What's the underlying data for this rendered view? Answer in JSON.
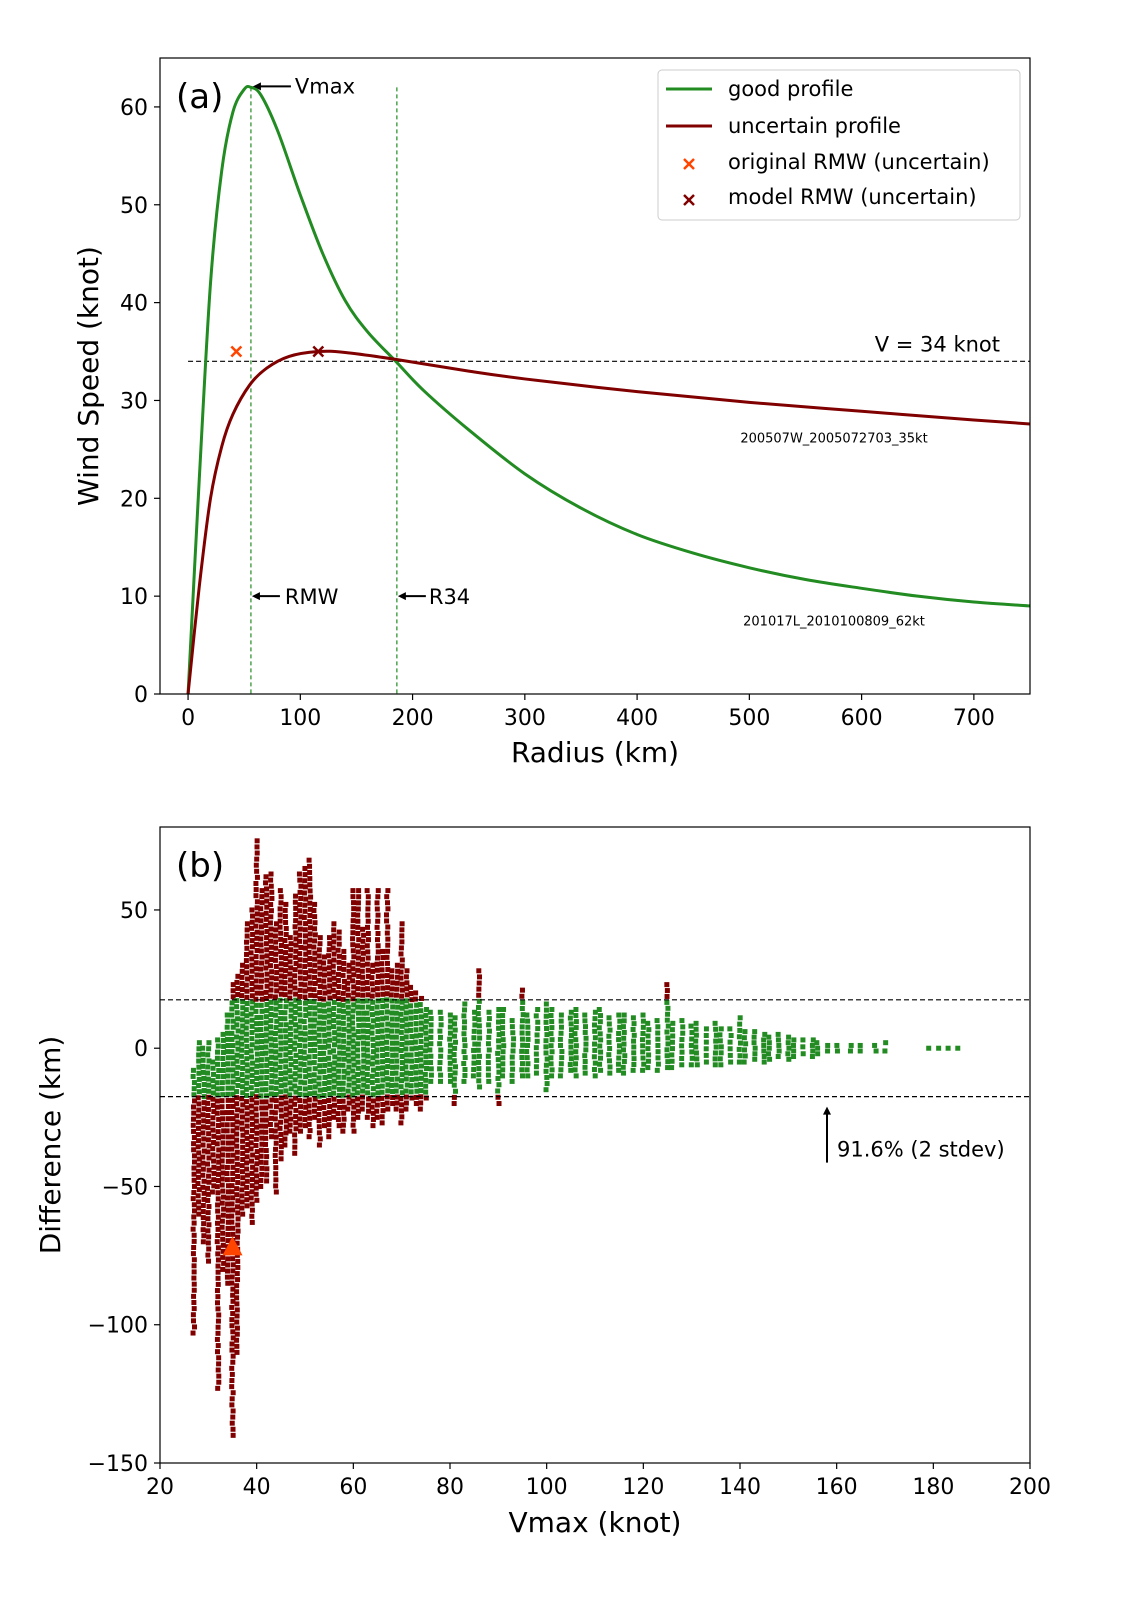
{
  "chart_data": [
    {
      "type": "line",
      "panel_label": "(a)",
      "xlabel": "Radius (km)",
      "ylabel": "Wind Speed (knot)",
      "xlim": [
        -25,
        750
      ],
      "ylim": [
        0,
        65
      ],
      "xticks": [
        0,
        100,
        200,
        300,
        400,
        500,
        600,
        700
      ],
      "yticks": [
        0,
        10,
        20,
        30,
        40,
        50,
        60
      ],
      "series": [
        {
          "name": "good profile",
          "color": "#228b22",
          "x": [
            0,
            10,
            20,
            30,
            40,
            50,
            56,
            65,
            80,
            100,
            120,
            140,
            160,
            185,
            210,
            250,
            300,
            350,
            400,
            450,
            500,
            550,
            600,
            650,
            700,
            750
          ],
          "y": [
            0,
            22,
            42,
            53.5,
            59.5,
            61.8,
            62,
            61.2,
            57.5,
            51,
            45,
            40.2,
            37,
            34,
            31,
            27,
            22.5,
            19,
            16.3,
            14.4,
            12.9,
            11.7,
            10.8,
            10,
            9.4,
            9
          ]
        },
        {
          "name": "uncertain profile",
          "color": "#800000",
          "x": [
            0,
            10,
            20,
            30,
            40,
            55,
            70,
            90,
            116,
            140,
            185,
            250,
            300,
            400,
            500,
            600,
            700,
            750
          ],
          "y": [
            0,
            11,
            20,
            25.3,
            28.6,
            31.6,
            33.3,
            34.5,
            35,
            34.9,
            34.2,
            33,
            32.2,
            30.9,
            29.8,
            28.9,
            28,
            27.6
          ]
        }
      ],
      "markers": [
        {
          "name": "original RMW (uncertain)",
          "x": 43,
          "y": 35,
          "color": "#ff4500",
          "symbol": "x"
        },
        {
          "name": "model RMW (uncertain)",
          "x": 116,
          "y": 35,
          "color": "#800000",
          "symbol": "x"
        }
      ],
      "reference_lines": {
        "hline": {
          "y": 34,
          "label": "V = 34 knot"
        },
        "vlines": [
          {
            "x": 56,
            "label": "RMW"
          },
          {
            "x": 186,
            "label": "R34"
          }
        ]
      },
      "annotations": [
        {
          "text": "Vmax",
          "x": 56,
          "y": 62
        },
        {
          "text": "RMW",
          "x": 56,
          "y": 10
        },
        {
          "text": "R34",
          "x": 186,
          "y": 10
        },
        {
          "text": "200507W_2005072703_35kt",
          "x": 570,
          "y": 26
        },
        {
          "text": "201017L_2010100809_62kt",
          "x": 570,
          "y": 7.5
        }
      ],
      "legend_position": "top-right"
    },
    {
      "type": "scatter",
      "panel_label": "(b)",
      "xlabel": "Vmax (knot)",
      "ylabel": "Difference (km)",
      "xlim": [
        20,
        200
      ],
      "ylim": [
        -150,
        80
      ],
      "xticks": [
        20,
        40,
        60,
        80,
        100,
        120,
        140,
        160,
        180,
        200
      ],
      "yticks": [
        -150,
        -100,
        -50,
        0,
        50
      ],
      "threshold": 17.5,
      "threshold_lines": [
        17.5,
        -17.5
      ],
      "colors": {
        "within": "#228b22",
        "outside": "#800000",
        "highlight": "#ff4500"
      },
      "highlight_point": {
        "x": 35,
        "y": -72
      },
      "annotation": {
        "text": "91.6% (2 stdev)",
        "x": 158,
        "y": -17.5
      },
      "columns": [
        {
          "x": 27,
          "max": -8,
          "min": -103
        },
        {
          "x": 28,
          "max": 2,
          "min": -60
        },
        {
          "x": 29,
          "max": 0,
          "min": -70
        },
        {
          "x": 30,
          "max": 2,
          "min": -77
        },
        {
          "x": 31,
          "max": -5,
          "min": -52
        },
        {
          "x": 32,
          "max": 3,
          "min": -123
        },
        {
          "x": 33,
          "max": 5,
          "min": -80
        },
        {
          "x": 34,
          "max": 12,
          "min": -85
        },
        {
          "x": 35,
          "max": 23,
          "min": -140
        },
        {
          "x": 36,
          "max": 26,
          "min": -110
        },
        {
          "x": 37,
          "max": 30,
          "min": -60
        },
        {
          "x": 38,
          "max": 45,
          "min": -57
        },
        {
          "x": 39,
          "max": 50,
          "min": -63
        },
        {
          "x": 40,
          "max": 75,
          "min": -55
        },
        {
          "x": 41,
          "max": 57,
          "min": -50
        },
        {
          "x": 42,
          "max": 62,
          "min": -48
        },
        {
          "x": 43,
          "max": 63,
          "min": -32
        },
        {
          "x": 44,
          "max": 45,
          "min": -52
        },
        {
          "x": 45,
          "max": 57,
          "min": -40
        },
        {
          "x": 46,
          "max": 52,
          "min": -35
        },
        {
          "x": 47,
          "max": 40,
          "min": -30
        },
        {
          "x": 48,
          "max": 55,
          "min": -38
        },
        {
          "x": 49,
          "max": 63,
          "min": -30
        },
        {
          "x": 50,
          "max": 65,
          "min": -28
        },
        {
          "x": 51,
          "max": 68,
          "min": -32
        },
        {
          "x": 52,
          "max": 52,
          "min": -25
        },
        {
          "x": 53,
          "max": 40,
          "min": -35
        },
        {
          "x": 54,
          "max": 33,
          "min": -28
        },
        {
          "x": 55,
          "max": 40,
          "min": -32
        },
        {
          "x": 56,
          "max": 45,
          "min": -25
        },
        {
          "x": 57,
          "max": 42,
          "min": -28
        },
        {
          "x": 58,
          "max": 35,
          "min": -30
        },
        {
          "x": 59,
          "max": 30,
          "min": -22
        },
        {
          "x": 60,
          "max": 57,
          "min": -30
        },
        {
          "x": 61,
          "max": 57,
          "min": -25
        },
        {
          "x": 62,
          "max": 43,
          "min": -22
        },
        {
          "x": 63,
          "max": 57,
          "min": -25
        },
        {
          "x": 64,
          "max": 30,
          "min": -28
        },
        {
          "x": 65,
          "max": 57,
          "min": -25
        },
        {
          "x": 66,
          "max": 35,
          "min": -27
        },
        {
          "x": 67,
          "max": 57,
          "min": -22
        },
        {
          "x": 68,
          "max": 28,
          "min": -20
        },
        {
          "x": 69,
          "max": 30,
          "min": -22
        },
        {
          "x": 70,
          "max": 45,
          "min": -27
        },
        {
          "x": 71,
          "max": 28,
          "min": -22
        },
        {
          "x": 72,
          "max": 22,
          "min": -18
        },
        {
          "x": 73,
          "max": 20,
          "min": -20
        },
        {
          "x": 74,
          "max": 18,
          "min": -22
        },
        {
          "x": 75,
          "max": 14,
          "min": -18
        },
        {
          "x": 76,
          "max": 13,
          "min": -12
        },
        {
          "x": 78,
          "max": 13,
          "min": -12
        },
        {
          "x": 80,
          "max": 12,
          "min": -12
        },
        {
          "x": 81,
          "max": 11,
          "min": -20
        },
        {
          "x": 83,
          "max": 16,
          "min": -12
        },
        {
          "x": 85,
          "max": 13,
          "min": -10
        },
        {
          "x": 86,
          "max": 28,
          "min": -14
        },
        {
          "x": 88,
          "max": 13,
          "min": -12
        },
        {
          "x": 90,
          "max": 14,
          "min": -20
        },
        {
          "x": 91,
          "max": 14,
          "min": -10
        },
        {
          "x": 93,
          "max": 10,
          "min": -12
        },
        {
          "x": 95,
          "max": 21,
          "min": -10
        },
        {
          "x": 96,
          "max": 12,
          "min": -10
        },
        {
          "x": 98,
          "max": 14,
          "min": -9
        },
        {
          "x": 100,
          "max": 16,
          "min": -15
        },
        {
          "x": 101,
          "max": 14,
          "min": -10
        },
        {
          "x": 103,
          "max": 12,
          "min": -10
        },
        {
          "x": 105,
          "max": 13,
          "min": -8
        },
        {
          "x": 106,
          "max": 14,
          "min": -10
        },
        {
          "x": 108,
          "max": 12,
          "min": -9
        },
        {
          "x": 110,
          "max": 13,
          "min": -10
        },
        {
          "x": 111,
          "max": 14,
          "min": -8
        },
        {
          "x": 113,
          "max": 11,
          "min": -9
        },
        {
          "x": 115,
          "max": 12,
          "min": -8
        },
        {
          "x": 116,
          "max": 12,
          "min": -9
        },
        {
          "x": 118,
          "max": 11,
          "min": -8
        },
        {
          "x": 120,
          "max": 12,
          "min": -8
        },
        {
          "x": 121,
          "max": 9,
          "min": -7
        },
        {
          "x": 123,
          "max": 10,
          "min": -8
        },
        {
          "x": 125,
          "max": 23,
          "min": -7
        },
        {
          "x": 126,
          "max": 9,
          "min": -7
        },
        {
          "x": 128,
          "max": 10,
          "min": -6
        },
        {
          "x": 130,
          "max": 8,
          "min": -6
        },
        {
          "x": 131,
          "max": 9,
          "min": -6
        },
        {
          "x": 133,
          "max": 7,
          "min": -5
        },
        {
          "x": 135,
          "max": 9,
          "min": -6
        },
        {
          "x": 136,
          "max": 7,
          "min": -6
        },
        {
          "x": 138,
          "max": 7,
          "min": -5
        },
        {
          "x": 140,
          "max": 11,
          "min": -5
        },
        {
          "x": 141,
          "max": 6,
          "min": -5
        },
        {
          "x": 143,
          "max": 6,
          "min": -4
        },
        {
          "x": 145,
          "max": 5,
          "min": -5
        },
        {
          "x": 146,
          "max": 4,
          "min": -4
        },
        {
          "x": 148,
          "max": 5,
          "min": -3
        },
        {
          "x": 150,
          "max": 4,
          "min": -4
        },
        {
          "x": 151,
          "max": 3,
          "min": -3
        },
        {
          "x": 153,
          "max": 3,
          "min": -2
        },
        {
          "x": 155,
          "max": 3,
          "min": -3
        },
        {
          "x": 156,
          "max": 2,
          "min": -2
        },
        {
          "x": 158,
          "max": 1,
          "min": -1
        },
        {
          "x": 160,
          "max": 1,
          "min": -1
        },
        {
          "x": 163,
          "max": 1,
          "min": -1
        },
        {
          "x": 165,
          "max": 1,
          "min": -1
        },
        {
          "x": 168,
          "max": 1,
          "min": -1
        },
        {
          "x": 170,
          "max": 2,
          "min": -1
        },
        {
          "x": 179,
          "max": 0,
          "min": 0
        },
        {
          "x": 181,
          "max": 0,
          "min": 0
        },
        {
          "x": 183,
          "max": 0,
          "min": 0
        },
        {
          "x": 185,
          "max": 0,
          "min": 0
        }
      ]
    }
  ]
}
